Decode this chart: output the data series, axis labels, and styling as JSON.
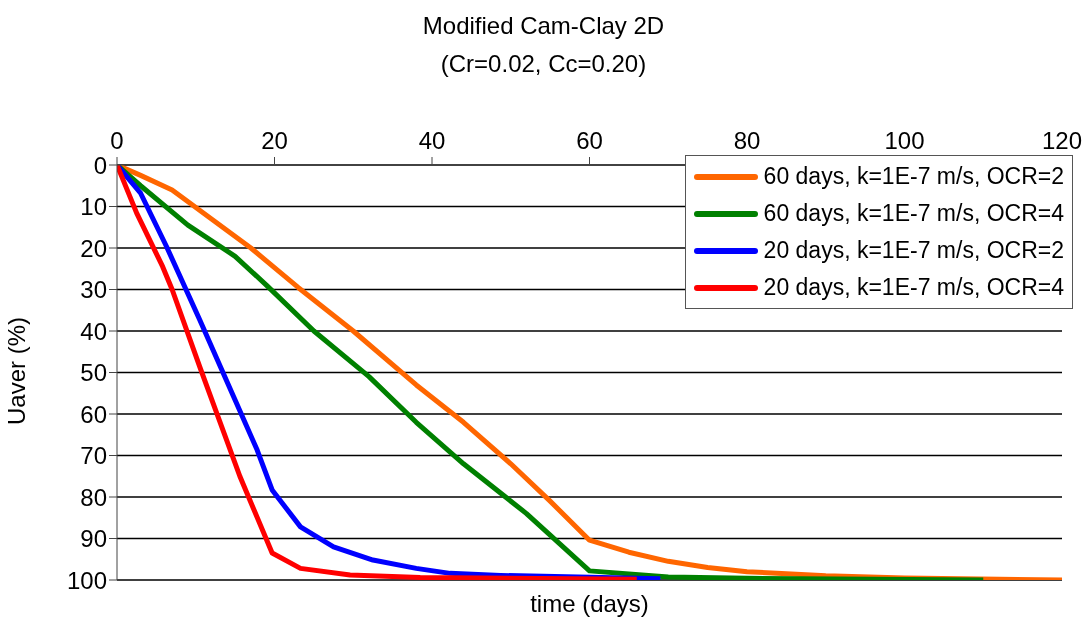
{
  "chart_data": {
    "type": "line",
    "title": "Modified Cam-Clay 2D",
    "subtitle": "(Cr=0.02, Cc=0.20)",
    "xlabel": "time (days)",
    "ylabel": "Uaver (%)",
    "xlim": [
      0,
      120
    ],
    "xticks": [
      0,
      20,
      40,
      60,
      80,
      100,
      120
    ],
    "ylim": [
      100,
      0
    ],
    "yticks": [
      0,
      10,
      20,
      30,
      40,
      50,
      60,
      70,
      80,
      90,
      100
    ],
    "grid": "y",
    "legend": "top right",
    "marker": "none",
    "line_style": "solid",
    "series": [
      {
        "name": "60 days, k=1E-7 m/s, OCR=2",
        "color": "#ff6600",
        "x": [
          0,
          3,
          7,
          12,
          17,
          23,
          30,
          38,
          44,
          50,
          55,
          60,
          65,
          70,
          75,
          80,
          90,
          100,
          120
        ],
        "values": [
          0,
          2.5,
          6,
          13,
          20,
          29.5,
          40,
          53,
          62,
          72,
          81,
          90.4,
          93.3,
          95.5,
          97,
          98,
          99,
          99.5,
          100
        ]
      },
      {
        "name": "60 days, k=1E-7 m/s, OCR=4",
        "color": "#008000",
        "x": [
          0,
          3,
          9,
          15,
          19,
          25,
          32,
          38,
          44,
          52,
          60,
          70,
          80,
          110
        ],
        "values": [
          0,
          5,
          14.5,
          22,
          29,
          40,
          51,
          62,
          72,
          84,
          97.8,
          99.3,
          99.6,
          100
        ]
      },
      {
        "name": "20 days, k=1E-7 m/s, OCR=2",
        "color": "#0000ff",
        "x": [
          0,
          3,
          6.3,
          10.5,
          14.8,
          17.8,
          19.7,
          23.3,
          27.5,
          32.5,
          38,
          42.3,
          48.7,
          69
        ],
        "values": [
          0,
          6.8,
          19.7,
          37.3,
          55.8,
          68.7,
          78.3,
          87.2,
          92,
          95.2,
          97.2,
          98.4,
          98.9,
          99.7
        ]
      },
      {
        "name": "20 days, k=1E-7 m/s, OCR=4",
        "color": "#ff0000",
        "x": [
          0,
          2.5,
          5.8,
          7,
          10.5,
          15.6,
          19.7,
          23.3,
          29.6,
          38.5,
          66
        ],
        "values": [
          0,
          11.6,
          24.5,
          30,
          48.6,
          75,
          93.5,
          97.2,
          98.8,
          99.4,
          99.8
        ]
      }
    ]
  }
}
